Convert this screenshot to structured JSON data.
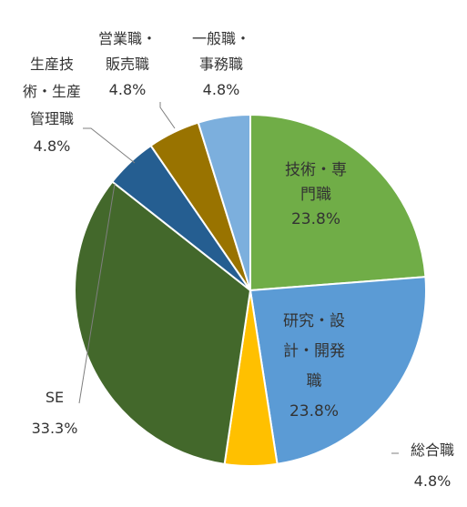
{
  "chart_data": {
    "type": "pie",
    "title": "",
    "start_angle_deg": 0,
    "direction": "clockwise",
    "slices": [
      {
        "name": "技術・専門職",
        "value": 23.8,
        "label_lines": [
          "技術・専",
          "門職"
        ],
        "pct_label": "23.8%",
        "color": "#70AD47"
      },
      {
        "name": "研究・設計・開発職",
        "value": 23.8,
        "label_lines": [
          "研究・設",
          "計・開発",
          "職"
        ],
        "pct_label": "23.8%",
        "color": "#5B9BD5"
      },
      {
        "name": "総合職",
        "value": 4.8,
        "label_lines": [
          "総合職"
        ],
        "pct_label": "4.8%",
        "color": "#FFC000"
      },
      {
        "name": "SE",
        "value": 33.3,
        "label_lines": [
          "SE"
        ],
        "pct_label": "33.3%",
        "color": "#43682B"
      },
      {
        "name": "生産技術・生産管理職",
        "value": 4.8,
        "label_lines": [
          "生産技",
          "術・生産",
          "管理職"
        ],
        "pct_label": "4.8%",
        "color": "#255E91"
      },
      {
        "name": "営業職・販売職",
        "value": 4.8,
        "label_lines": [
          "営業職・",
          "販売職"
        ],
        "pct_label": "4.8%",
        "color": "#997300"
      },
      {
        "name": "一般職・事務職",
        "value": 4.8,
        "label_lines": [
          "一般職・",
          "事務職"
        ],
        "pct_label": "4.8%",
        "color": "#7CAFDD"
      }
    ]
  }
}
